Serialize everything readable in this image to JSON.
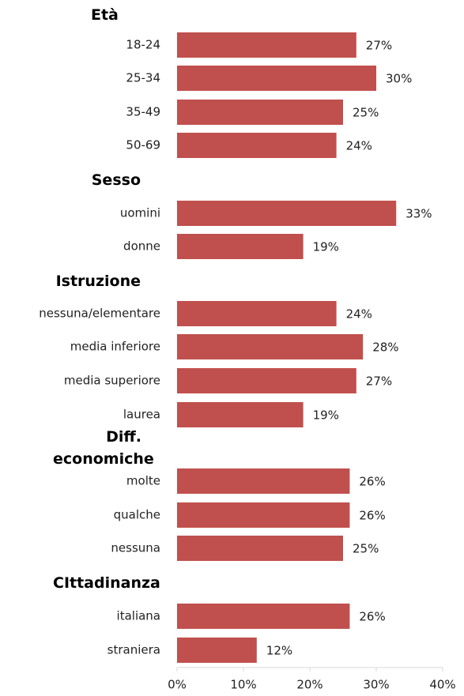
{
  "chart_data": {
    "type": "bar",
    "orientation": "horizontal",
    "color": "#c0504d",
    "xlim": [
      0,
      40
    ],
    "xticks": [
      {
        "value": 0,
        "label": "0%"
      },
      {
        "value": 10,
        "label": "10%"
      },
      {
        "value": 20,
        "label": "20%"
      },
      {
        "value": 30,
        "label": "30%"
      },
      {
        "value": 40,
        "label": "40%"
      }
    ],
    "groups": [
      {
        "title": "Età",
        "categories": [
          "18-24",
          "25-34",
          "35-49",
          "50-69"
        ],
        "values": [
          27,
          30,
          25,
          24
        ],
        "value_labels": [
          "27%",
          "30%",
          "25%",
          "24%"
        ]
      },
      {
        "title": "Sesso",
        "categories": [
          "uomini",
          "donne"
        ],
        "values": [
          33,
          19
        ],
        "value_labels": [
          "33%",
          "19%"
        ]
      },
      {
        "title": "Istruzione",
        "categories": [
          "nessuna/elementare",
          "media inferiore",
          "media superiore",
          "laurea"
        ],
        "values": [
          24,
          28,
          27,
          19
        ],
        "value_labels": [
          "24%",
          "28%",
          "27%",
          "19%"
        ]
      },
      {
        "title": "Diff. economiche",
        "categories": [
          "molte",
          "qualche",
          "nessuna"
        ],
        "values": [
          26,
          26,
          25
        ],
        "value_labels": [
          "26%",
          "26%",
          "25%"
        ]
      },
      {
        "title": "CIttadinanza",
        "categories": [
          "italiana",
          "straniera"
        ],
        "values": [
          26,
          12
        ],
        "value_labels": [
          "26%",
          "12%"
        ]
      }
    ]
  }
}
